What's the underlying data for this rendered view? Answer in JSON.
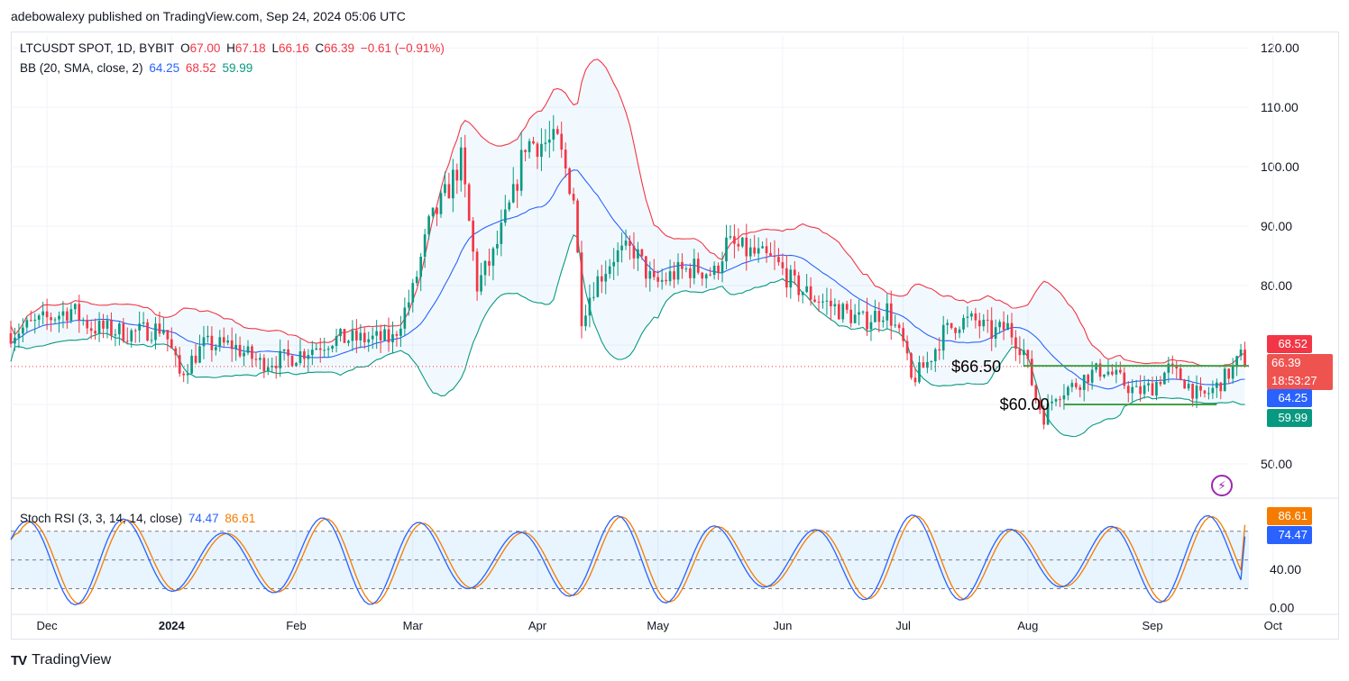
{
  "header": {
    "text": "adebowalexy published on TradingView.com, Sep 24, 2024 05:06 UTC"
  },
  "legend": {
    "symbol": "LTCUSDT SPOT, 1D, BYBIT",
    "o_label": "O",
    "o": "67.00",
    "h_label": "H",
    "h": "67.18",
    "l_label": "L",
    "l": "66.16",
    "c_label": "C",
    "c": "66.39",
    "change": "−0.61 (−0.91%)",
    "bb_label": "BB (20, SMA, close, 2)",
    "bb_basis": "64.25",
    "bb_upper": "68.52",
    "bb_lower": "59.99",
    "rsi_label": "Stoch RSI (3, 3, 14, 14, close)",
    "rsi_k": "74.47",
    "rsi_d": "86.61"
  },
  "badges": {
    "upper": "68.52",
    "price": "66.39",
    "countdown": "18:53:27",
    "basis": "64.25",
    "lower": "59.99",
    "rsi_d": "86.61",
    "rsi_k": "74.47"
  },
  "annotations": {
    "resistance": "$66.50",
    "support": "$60.00"
  },
  "footer": {
    "brand": "TradingView"
  },
  "colors": {
    "up": "#089981",
    "down": "#f23645",
    "basis": "#2962ff",
    "upper": "#f23645",
    "lower": "#089981",
    "k": "#2962ff",
    "d": "#f57c00",
    "level": "#43a047"
  },
  "chart_data": {
    "type": "candlestick",
    "x_ticks": [
      "Dec",
      "2024",
      "Feb",
      "Mar",
      "Apr",
      "May",
      "Jun",
      "Jul",
      "Aug",
      "Sep",
      "Oct"
    ],
    "price_ticks": [
      "120.00",
      "110.00",
      "100.00",
      "90.00",
      "80.00",
      "50.00"
    ],
    "rsi_ticks": [
      "40.00",
      "0.00"
    ],
    "price_ylim": [
      45,
      122
    ],
    "rsi_ylim": [
      -5,
      108
    ],
    "x_range": [
      0,
      308
    ],
    "month_positions": [
      {
        "label": "Dec",
        "x": 9
      },
      {
        "label": "2024",
        "x": 40
      },
      {
        "label": "Feb",
        "x": 71
      },
      {
        "label": "Mar",
        "x": 100
      },
      {
        "label": "Apr",
        "x": 131
      },
      {
        "label": "May",
        "x": 161
      },
      {
        "label": "Jun",
        "x": 192
      },
      {
        "label": "Jul",
        "x": 222
      },
      {
        "label": "Aug",
        "x": 253
      },
      {
        "label": "Sep",
        "x": 284
      },
      {
        "label": "Oct",
        "x": 314
      }
    ],
    "close_anchors": [
      [
        0,
        72
      ],
      [
        15,
        76
      ],
      [
        20,
        73
      ],
      [
        30,
        72
      ],
      [
        38,
        73
      ],
      [
        42,
        65
      ],
      [
        48,
        70
      ],
      [
        55,
        70
      ],
      [
        62,
        67
      ],
      [
        70,
        68
      ],
      [
        80,
        71
      ],
      [
        90,
        71
      ],
      [
        95,
        71
      ],
      [
        100,
        79
      ],
      [
        104,
        90
      ],
      [
        108,
        95
      ],
      [
        112,
        101
      ],
      [
        116,
        80
      ],
      [
        120,
        85
      ],
      [
        125,
        95
      ],
      [
        128,
        104
      ],
      [
        132,
        104
      ],
      [
        136,
        104
      ],
      [
        140,
        95
      ],
      [
        142,
        75
      ],
      [
        145,
        80
      ],
      [
        150,
        85
      ],
      [
        155,
        86
      ],
      [
        160,
        80
      ],
      [
        165,
        82
      ],
      [
        170,
        83
      ],
      [
        175,
        82
      ],
      [
        178,
        87
      ],
      [
        182,
        86
      ],
      [
        186,
        85
      ],
      [
        190,
        84
      ],
      [
        195,
        80
      ],
      [
        200,
        78
      ],
      [
        206,
        76
      ],
      [
        212,
        74
      ],
      [
        218,
        76
      ],
      [
        222,
        70
      ],
      [
        224,
        64
      ],
      [
        228,
        67
      ],
      [
        232,
        72
      ],
      [
        236,
        74
      ],
      [
        240,
        74
      ],
      [
        244,
        72
      ],
      [
        248,
        73
      ],
      [
        252,
        69
      ],
      [
        255,
        61
      ],
      [
        257,
        58
      ],
      [
        260,
        62
      ],
      [
        264,
        63
      ],
      [
        268,
        65
      ],
      [
        272,
        66
      ],
      [
        276,
        64
      ],
      [
        280,
        62
      ],
      [
        284,
        63
      ],
      [
        288,
        66
      ],
      [
        292,
        64
      ],
      [
        296,
        61
      ],
      [
        300,
        63
      ],
      [
        304,
        66
      ],
      [
        306,
        68
      ],
      [
        307,
        66.39
      ]
    ],
    "last_close": 66.39,
    "bb_last": {
      "upper": 68.52,
      "basis": 64.25,
      "lower": 59.99
    },
    "levels": [
      {
        "label": "$66.50",
        "value": 66.5,
        "x_start": 252,
        "x_end": 308
      },
      {
        "label": "$60.00",
        "value": 60,
        "x_start": 262,
        "x_end": 300
      }
    ],
    "stoch_rsi_last": {
      "k": 74.47,
      "d": 86.61
    },
    "stoch_bands": [
      20,
      50,
      80
    ]
  }
}
